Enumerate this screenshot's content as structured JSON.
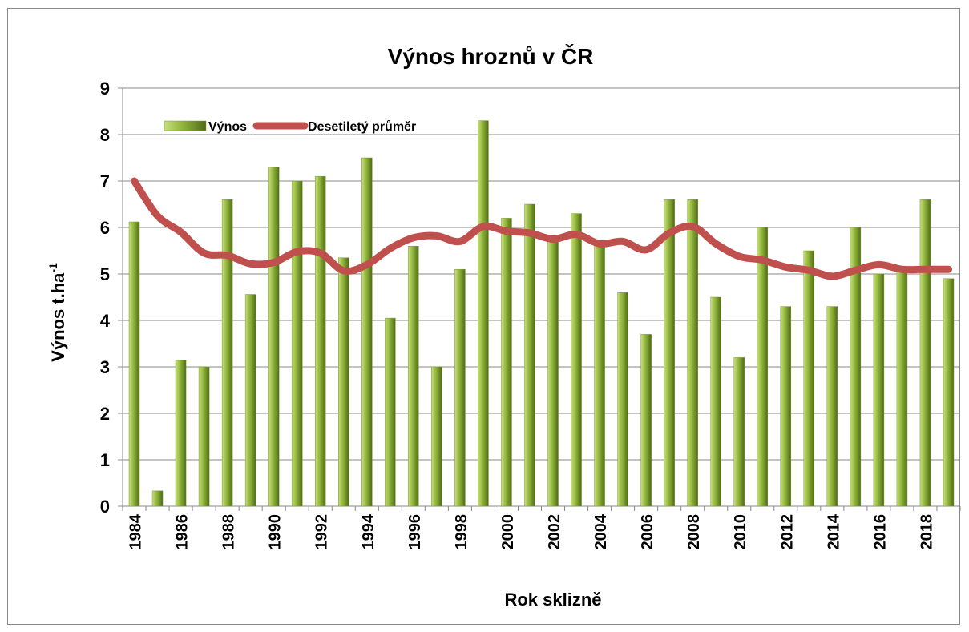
{
  "chart_data": {
    "type": "bar_line",
    "title": "Výnos hroznů v ČR",
    "xlabel": "Rok sklizně",
    "ylabel": "Výnos t.ha",
    "ylabel_sup": "-1",
    "categories": [
      "1984",
      null,
      "1986",
      null,
      "1988",
      null,
      "1990",
      null,
      "1992",
      null,
      "1994",
      null,
      "1996",
      null,
      "1998",
      null,
      "2000",
      null,
      "2002",
      null,
      "2004",
      null,
      "2006",
      null,
      "2008",
      null,
      "2010",
      null,
      "2012",
      null,
      "2014",
      null,
      "2016",
      null,
      "2018",
      null
    ],
    "series": [
      {
        "name": "Výnos",
        "color": "#7a9a2e",
        "kind": "bar",
        "values": [
          6.12,
          0.33,
          3.15,
          3.0,
          6.6,
          4.56,
          7.3,
          7.0,
          7.1,
          5.35,
          7.5,
          4.05,
          5.6,
          3.0,
          5.1,
          8.3,
          6.2,
          6.5,
          5.75,
          6.3,
          5.6,
          4.6,
          3.7,
          6.6,
          6.6,
          4.5,
          3.2,
          6.0,
          4.3,
          5.5,
          4.3,
          6.0,
          5.0,
          5.1,
          6.6,
          4.9
        ]
      },
      {
        "name": "Desetiletý průměr",
        "color": "#c0504d",
        "kind": "line",
        "values": [
          7.0,
          6.25,
          5.9,
          5.45,
          5.4,
          5.22,
          5.25,
          5.48,
          5.45,
          5.07,
          5.2,
          5.55,
          5.78,
          5.82,
          5.7,
          6.02,
          5.92,
          5.88,
          5.75,
          5.85,
          5.65,
          5.7,
          5.52,
          5.88,
          6.02,
          5.65,
          5.38,
          5.3,
          5.15,
          5.08,
          4.95,
          5.08,
          5.2,
          5.1,
          5.1,
          5.1
        ]
      }
    ],
    "ylim": [
      0,
      9
    ],
    "yticks": [
      0,
      1,
      2,
      3,
      4,
      5,
      6,
      7,
      8,
      9
    ],
    "grid": true,
    "legend": "top-left"
  }
}
